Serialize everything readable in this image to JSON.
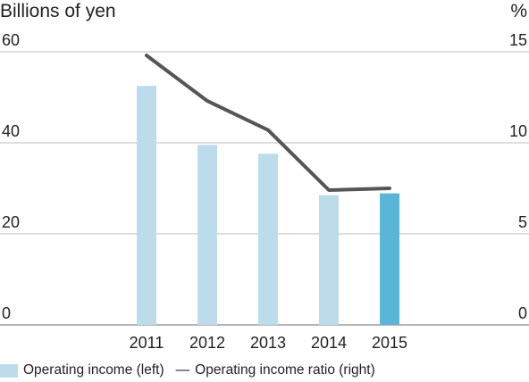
{
  "chart_data": {
    "type": "bar",
    "left_axis_unit": "Billions of yen",
    "right_axis_unit": "%",
    "categories": [
      "2011",
      "2012",
      "2013",
      "2014",
      "2015"
    ],
    "left_ticks": [
      "0",
      "20",
      "40",
      "60"
    ],
    "right_ticks": [
      "0",
      "5",
      "10",
      "15"
    ],
    "ylim_left": [
      0,
      60
    ],
    "ylim_right": [
      0,
      15
    ],
    "grid": true,
    "legend_position": "bottom-left",
    "series": [
      {
        "name": "Operating income (left)",
        "type": "bar",
        "axis": "left",
        "values": [
          52.5,
          39.5,
          37.6,
          28.5,
          28.9
        ],
        "colors": [
          "#bcdcec",
          "#bcdcec",
          "#bcdcec",
          "#bcdcec",
          "#5bb5d8"
        ]
      },
      {
        "name": "Operating income ratio (right)",
        "type": "line",
        "axis": "right",
        "values": [
          14.8,
          12.3,
          10.7,
          7.4,
          7.5
        ],
        "color": "#555555"
      }
    ]
  },
  "legend": {
    "bar_label": "Operating income (left)",
    "line_marker": "—",
    "line_label": "Operating income ratio (right)",
    "bar_color": "#bcdcec",
    "line_color": "#555555"
  }
}
